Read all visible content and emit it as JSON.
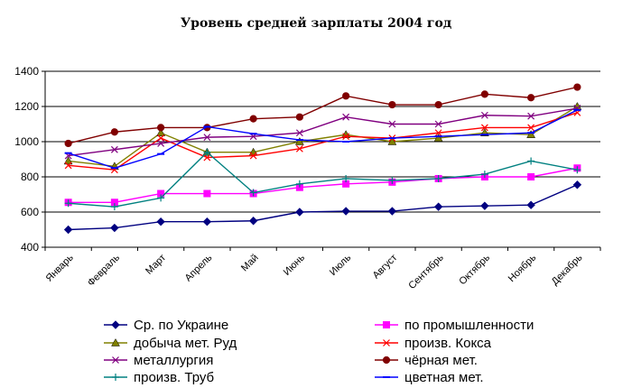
{
  "chart_data": {
    "type": "line",
    "title": "Уровень средней зарплаты 2004 год",
    "xlabel": "",
    "ylabel": "",
    "categories": [
      "Январь",
      "Февраль",
      "Март",
      "Апрель",
      "Май",
      "Июнь",
      "Июль",
      "Август",
      "Сентябрь",
      "Октябрь",
      "Ноябрь",
      "Декабрь"
    ],
    "ylim": [
      400,
      1400
    ],
    "yticks": [
      400,
      600,
      800,
      1000,
      1200,
      1400
    ],
    "grid": "horizontal",
    "legend_position": "bottom",
    "series": [
      {
        "name": "Ср. по Украине",
        "color": "#000080",
        "marker": "diamond",
        "values": [
          500,
          510,
          545,
          545,
          550,
          600,
          605,
          605,
          630,
          635,
          640,
          755
        ]
      },
      {
        "name": "по промышленности",
        "color": "#ff00ff",
        "marker": "square",
        "values": [
          655,
          655,
          705,
          705,
          705,
          740,
          760,
          770,
          790,
          800,
          800,
          850
        ]
      },
      {
        "name": "добыча мет. Руд",
        "color": "#808000",
        "marker": "triangle",
        "values": [
          890,
          860,
          1050,
          940,
          940,
          1000,
          1040,
          1000,
          1020,
          1050,
          1040,
          1200
        ]
      },
      {
        "name": "произв. Кокса",
        "color": "#ff0000",
        "marker": "x",
        "values": [
          865,
          840,
          1020,
          910,
          920,
          960,
          1030,
          1020,
          1050,
          1080,
          1080,
          1165
        ]
      },
      {
        "name": "металлургия",
        "color": "#800080",
        "marker": "x",
        "values": [
          920,
          955,
          990,
          1025,
          1030,
          1050,
          1140,
          1100,
          1100,
          1150,
          1145,
          1190
        ]
      },
      {
        "name": "чёрная мет.",
        "color": "#800000",
        "marker": "circle",
        "values": [
          990,
          1055,
          1080,
          1080,
          1130,
          1140,
          1260,
          1210,
          1210,
          1270,
          1250,
          1310
        ]
      },
      {
        "name": "произв. Труб",
        "color": "#008080",
        "marker": "plus",
        "values": [
          650,
          630,
          680,
          940,
          710,
          760,
          790,
          780,
          790,
          815,
          890,
          840
        ]
      },
      {
        "name": "цветная мет.",
        "color": "#0000ff",
        "marker": "dash",
        "values": [
          935,
          850,
          930,
          1085,
          1045,
          1010,
          1000,
          1020,
          1030,
          1040,
          1050,
          1180
        ]
      }
    ]
  }
}
